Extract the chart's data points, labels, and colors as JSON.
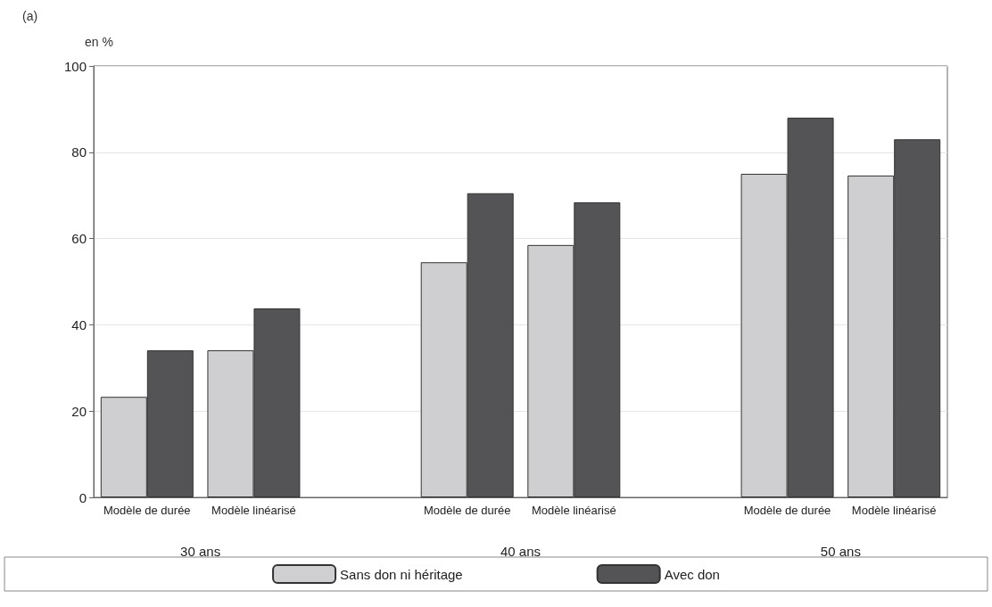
{
  "chart_data": {
    "type": "bar",
    "title": "(a)",
    "ylabel": "en %",
    "categories": [
      "Modèle de durée",
      "Modèle linéarisé",
      null,
      "Modèle de durée",
      "Modèle linéarisé",
      null,
      "Modèle de durée",
      "Modèle linéarisé"
    ],
    "series": [
      {
        "name": "Sans don ni héritage",
        "color": "#cfcfd1",
        "values": [
          23.3,
          34.1,
          null,
          54.5,
          58.5,
          null,
          75,
          74.6
        ]
      },
      {
        "name": "Avec don",
        "color": "#545456",
        "values": [
          34.1,
          43.8,
          null,
          70.5,
          68.4,
          null,
          88,
          83
        ]
      }
    ],
    "annotations": [
      "30 ans",
      "40 ans",
      "50 ans"
    ],
    "ylim": [
      0,
      100
    ],
    "yticks": [
      0,
      20,
      40,
      60,
      80,
      100
    ],
    "grid": "y",
    "legend": "bottom"
  }
}
